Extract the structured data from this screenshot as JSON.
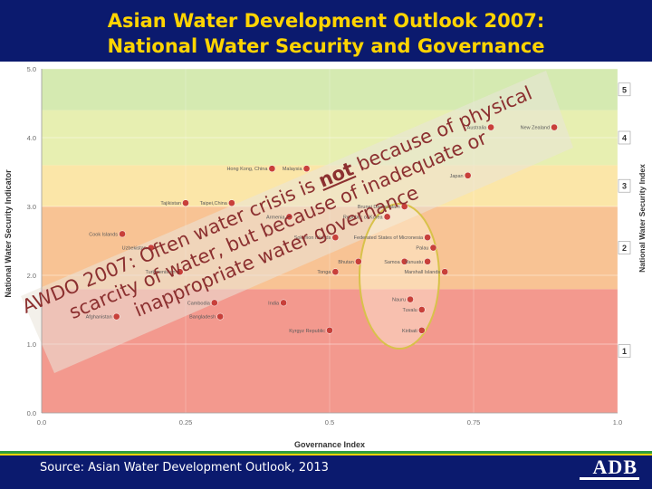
{
  "header": {
    "title_line1": "Asian Water Development Outlook 2007:",
    "title_line2": "National Water Security and Governance"
  },
  "colors": {
    "band1": "#f3998e",
    "band2": "#f8c394",
    "band3": "#fbe6a8",
    "band4": "#e7efb1",
    "band5": "#d5eab1",
    "point": "#c8403a",
    "header_bg": "#0b1a6e",
    "title": "#ffd400"
  },
  "chart_data": {
    "type": "scatter",
    "xlabel": "Governance Index",
    "ylabel": "National Water Security Indicator",
    "y2label": "National Water Security Index",
    "xlim": [
      0.0,
      1.0
    ],
    "ylim": [
      0.0,
      5.0
    ],
    "xticks": [
      "0.0",
      "0.25",
      "0.5",
      "0.75",
      "1.0"
    ],
    "yticks": [
      "0.0",
      "1.0",
      "2.0",
      "3.0",
      "4.0",
      "5.0"
    ],
    "bands": [
      {
        "label": "1",
        "from": 0.0,
        "to": 1.8
      },
      {
        "label": "2",
        "from": 1.8,
        "to": 3.0
      },
      {
        "label": "3",
        "from": 3.0,
        "to": 3.6
      },
      {
        "label": "4",
        "from": 3.6,
        "to": 4.4
      },
      {
        "label": "5",
        "from": 4.4,
        "to": 5.0
      }
    ],
    "points": [
      {
        "label": "Australia",
        "x": 0.78,
        "y": 4.15
      },
      {
        "label": "New Zealand",
        "x": 0.89,
        "y": 4.15
      },
      {
        "label": "Hong Kong, China",
        "x": 0.4,
        "y": 3.55
      },
      {
        "label": "Malaysia",
        "x": 0.46,
        "y": 3.55
      },
      {
        "label": "Japan",
        "x": 0.74,
        "y": 3.45
      },
      {
        "label": "Tajikistan",
        "x": 0.25,
        "y": 3.05
      },
      {
        "label": "Taipei,China",
        "x": 0.33,
        "y": 3.05
      },
      {
        "label": "Armenia",
        "x": 0.43,
        "y": 2.85
      },
      {
        "label": "Brunei Darussalam",
        "x": 0.63,
        "y": 3.0
      },
      {
        "label": "Republic of Korea",
        "x": 0.6,
        "y": 2.85
      },
      {
        "label": "Cook Islands",
        "x": 0.14,
        "y": 2.6
      },
      {
        "label": "Uzbekistan",
        "x": 0.19,
        "y": 2.4
      },
      {
        "label": "Solomon Islands",
        "x": 0.51,
        "y": 2.55
      },
      {
        "label": "Federated States of Micronesia",
        "x": 0.67,
        "y": 2.55
      },
      {
        "label": "Palau",
        "x": 0.68,
        "y": 2.4
      },
      {
        "label": "Samoa",
        "x": 0.63,
        "y": 2.2
      },
      {
        "label": "Bhutan",
        "x": 0.55,
        "y": 2.2
      },
      {
        "label": "Vanuatu",
        "x": 0.67,
        "y": 2.2
      },
      {
        "label": "Turkmenistan",
        "x": 0.24,
        "y": 2.05
      },
      {
        "label": "Tonga",
        "x": 0.51,
        "y": 2.05
      },
      {
        "label": "Marshall Islands",
        "x": 0.7,
        "y": 2.05
      },
      {
        "label": "Cambodia",
        "x": 0.3,
        "y": 1.6
      },
      {
        "label": "India",
        "x": 0.42,
        "y": 1.6
      },
      {
        "label": "Nauru",
        "x": 0.64,
        "y": 1.65
      },
      {
        "label": "Tuvalu",
        "x": 0.66,
        "y": 1.5
      },
      {
        "label": "Bangladesh",
        "x": 0.31,
        "y": 1.4
      },
      {
        "label": "Afghanistan",
        "x": 0.13,
        "y": 1.4
      },
      {
        "label": "Kyrgyz Republic",
        "x": 0.5,
        "y": 1.2
      },
      {
        "label": "Kiribati",
        "x": 0.66,
        "y": 1.2
      }
    ]
  },
  "overlay": {
    "lines": [
      "AWDO 2007: Often water crisis is not because of physical",
      "scarcity of water, but because of inadequate or",
      "inappropriate water governance"
    ],
    "emphasis": "not"
  },
  "footer": {
    "source": "Source: Asian Water Development Outlook, 2013",
    "logo": "ADB"
  }
}
